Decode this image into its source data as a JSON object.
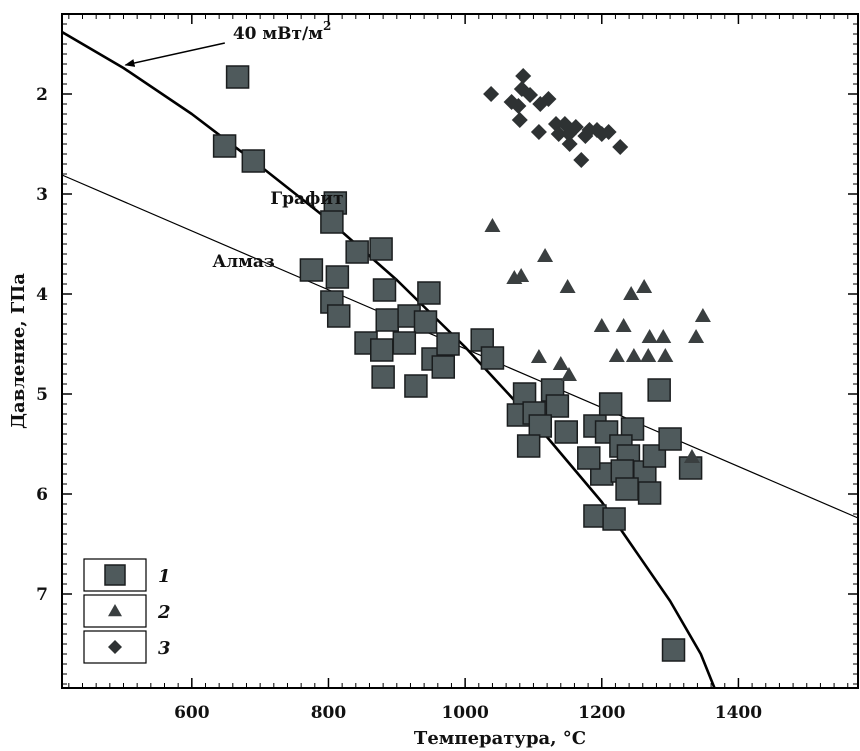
{
  "chart_data": {
    "type": "scatter",
    "xlabel": "Температура, °C",
    "ylabel": "Давление, ГПа",
    "xlim": [
      410,
      1575
    ],
    "ylim": [
      1.2,
      7.94
    ],
    "y_inverted": true,
    "x_ticks": [
      600,
      800,
      1000,
      1200,
      1400
    ],
    "y_ticks": [
      2,
      3,
      4,
      5,
      6,
      7
    ],
    "grid": false,
    "legend_position": "bottom-left",
    "series": [
      {
        "name": "1",
        "marker": "square",
        "color": "#4f5a5c",
        "points": [
          [
            667,
            1.83
          ],
          [
            648,
            2.52
          ],
          [
            690,
            2.67
          ],
          [
            810,
            3.09
          ],
          [
            805,
            3.28
          ],
          [
            775,
            3.76
          ],
          [
            842,
            3.58
          ],
          [
            877,
            3.55
          ],
          [
            813,
            3.83
          ],
          [
            805,
            4.08
          ],
          [
            815,
            4.22
          ],
          [
            882,
            3.96
          ],
          [
            947,
            3.99
          ],
          [
            886,
            4.26
          ],
          [
            918,
            4.22
          ],
          [
            942,
            4.28
          ],
          [
            855,
            4.49
          ],
          [
            878,
            4.56
          ],
          [
            911,
            4.49
          ],
          [
            880,
            4.83
          ],
          [
            928,
            4.92
          ],
          [
            953,
            4.65
          ],
          [
            975,
            4.5
          ],
          [
            968,
            4.73
          ],
          [
            1025,
            4.46
          ],
          [
            1040,
            4.64
          ],
          [
            1087,
            5.0
          ],
          [
            1078,
            5.21
          ],
          [
            1101,
            5.19
          ],
          [
            1128,
            4.96
          ],
          [
            1135,
            5.12
          ],
          [
            1110,
            5.32
          ],
          [
            1093,
            5.52
          ],
          [
            1148,
            5.38
          ],
          [
            1190,
            5.32
          ],
          [
            1213,
            5.1
          ],
          [
            1207,
            5.38
          ],
          [
            1245,
            5.35
          ],
          [
            1228,
            5.52
          ],
          [
            1239,
            5.62
          ],
          [
            1200,
            5.8
          ],
          [
            1230,
            5.77
          ],
          [
            1263,
            5.78
          ],
          [
            1237,
            5.95
          ],
          [
            1270,
            5.99
          ],
          [
            1277,
            5.62
          ],
          [
            1284,
            4.96
          ],
          [
            1300,
            5.45
          ],
          [
            1330,
            5.74
          ],
          [
            1181,
            5.64
          ],
          [
            1190,
            6.22
          ],
          [
            1218,
            6.25
          ],
          [
            1305,
            7.56
          ]
        ]
      },
      {
        "name": "2",
        "marker": "triangle",
        "color": "#3a3f40",
        "points": [
          [
            1040,
            3.32
          ],
          [
            1072,
            3.84
          ],
          [
            1082,
            3.82
          ],
          [
            1117,
            3.62
          ],
          [
            1150,
            3.93
          ],
          [
            1200,
            4.32
          ],
          [
            1232,
            4.32
          ],
          [
            1243,
            4.0
          ],
          [
            1262,
            3.93
          ],
          [
            1270,
            4.43
          ],
          [
            1290,
            4.43
          ],
          [
            1222,
            4.62
          ],
          [
            1247,
            4.62
          ],
          [
            1268,
            4.62
          ],
          [
            1293,
            4.62
          ],
          [
            1108,
            4.63
          ],
          [
            1140,
            4.7
          ],
          [
            1152,
            4.81
          ],
          [
            1338,
            4.43
          ],
          [
            1348,
            4.22
          ],
          [
            1332,
            5.63
          ]
        ]
      },
      {
        "name": "3",
        "marker": "diamond",
        "color": "#2e3233",
        "points": [
          [
            1085,
            1.82
          ],
          [
            1038,
            2.0
          ],
          [
            1083,
            1.95
          ],
          [
            1095,
            2.01
          ],
          [
            1068,
            2.08
          ],
          [
            1078,
            2.12
          ],
          [
            1110,
            2.1
          ],
          [
            1122,
            2.05
          ],
          [
            1080,
            2.26
          ],
          [
            1108,
            2.38
          ],
          [
            1133,
            2.3
          ],
          [
            1146,
            2.3
          ],
          [
            1162,
            2.33
          ],
          [
            1182,
            2.36
          ],
          [
            1193,
            2.36
          ],
          [
            1200,
            2.4
          ],
          [
            1137,
            2.4
          ],
          [
            1152,
            2.4
          ],
          [
            1176,
            2.42
          ],
          [
            1210,
            2.38
          ],
          [
            1153,
            2.5
          ],
          [
            1170,
            2.66
          ],
          [
            1227,
            2.53
          ]
        ]
      }
    ],
    "lines": [
      {
        "name": "40 мВт/м2",
        "style": "thick",
        "points": [
          [
            410,
            1.38
          ],
          [
            500,
            1.74
          ],
          [
            600,
            2.2
          ],
          [
            700,
            2.72
          ],
          [
            800,
            3.26
          ],
          [
            900,
            3.86
          ],
          [
            1000,
            4.53
          ],
          [
            1100,
            5.27
          ],
          [
            1200,
            6.08
          ],
          [
            1300,
            7.07
          ],
          [
            1345,
            7.6
          ],
          [
            1365,
            7.94
          ]
        ]
      },
      {
        "name": "Алмаз / Графит",
        "style": "thin",
        "points": [
          [
            410,
            2.81
          ],
          [
            1575,
            6.24
          ]
        ]
      }
    ],
    "annotations": [
      {
        "text": "40 мВт/м",
        "superscript": "2",
        "anchor": [
          660,
          1.45
        ],
        "arrow_to": [
          500,
          1.72
        ]
      },
      {
        "text": "Графит",
        "anchor": [
          715,
          3.1
        ]
      },
      {
        "text": "Алмаз",
        "anchor": [
          630,
          3.73
        ]
      }
    ]
  }
}
